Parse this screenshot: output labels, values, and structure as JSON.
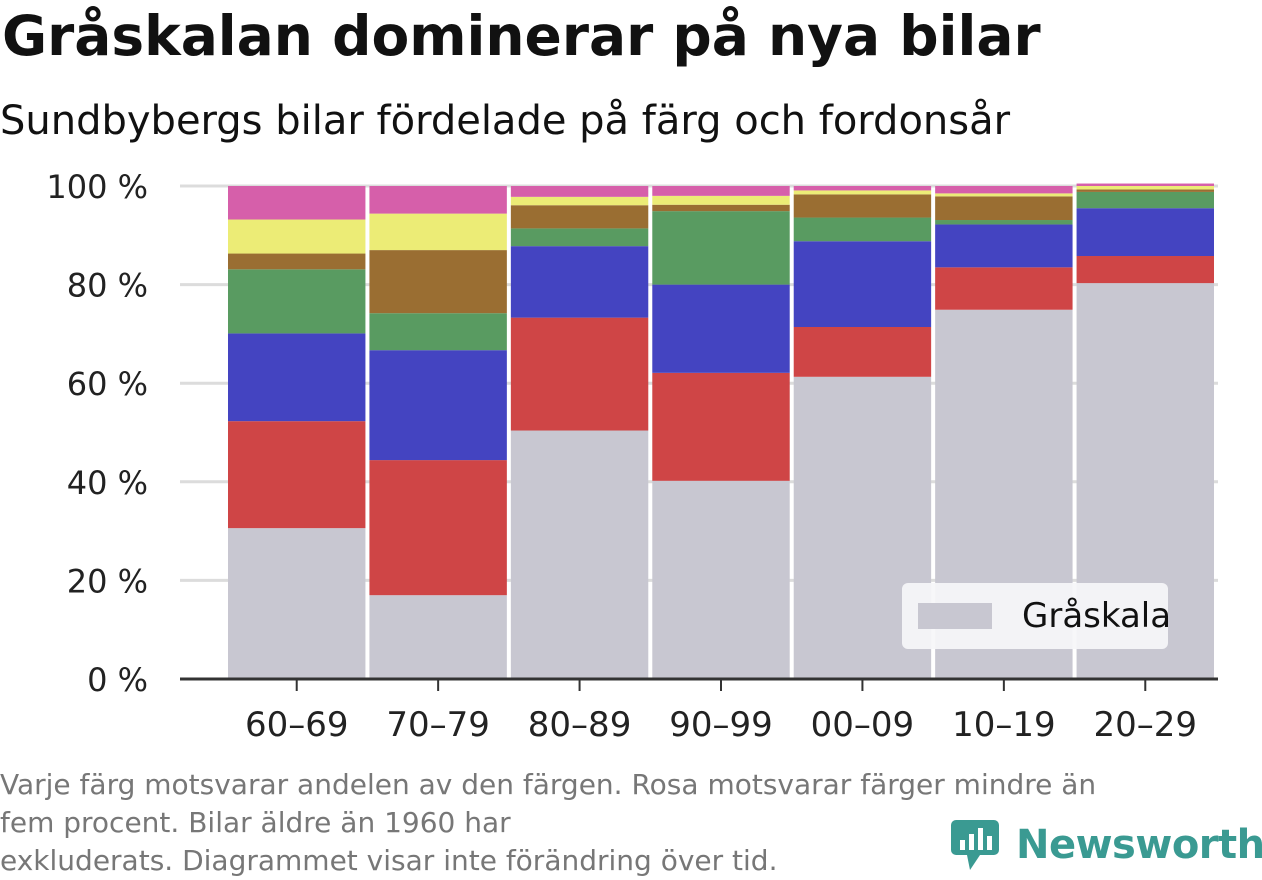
{
  "title": "Gråskalan dominerar på nya bilar",
  "subtitle": "Sundbybergs bilar fördelade på färg och fordonsår",
  "caption": {
    "line1": "Varje färg motsvarar andelen av den färgen. Rosa motsvarar färger mindre än",
    "line2": "fem procent. Bilar äldre än 1960 har",
    "line3": "exkluderats. Diagrammet visar inte förändring över tid."
  },
  "logo": {
    "text": "Newsworthy",
    "icon": "newsworthy-logo-icon",
    "color": "#3a9a92"
  },
  "chart_data": {
    "type": "bar",
    "stacked": true,
    "categories": [
      "60–69",
      "70–79",
      "80–89",
      "90–99",
      "00–09",
      "10–19",
      "20–29"
    ],
    "ylim": [
      0,
      100
    ],
    "yticks": [
      "0 %",
      "20 %",
      "40 %",
      "60 %",
      "80 %",
      "100 %"
    ],
    "grid": true,
    "legend": {
      "position": "bottom-right",
      "entries": [
        "Gråskala"
      ]
    },
    "series": [
      {
        "name": "Gråskala",
        "color": "#c8c7d1",
        "values": [
          30.6,
          17.0,
          50.4,
          40.2,
          61.3,
          74.9,
          80.3
        ]
      },
      {
        "color": "#cf4546",
        "values": [
          21.7,
          27.4,
          22.9,
          21.9,
          10.1,
          8.6,
          5.5
        ]
      },
      {
        "color": "#4444c1",
        "values": [
          17.8,
          22.3,
          14.5,
          17.9,
          17.4,
          8.7,
          9.7
        ]
      },
      {
        "color": "#599b61",
        "values": [
          13.0,
          7.5,
          3.6,
          14.9,
          4.8,
          0.9,
          3.3
        ]
      },
      {
        "color": "#9a6e32",
        "values": [
          3.2,
          12.8,
          4.7,
          1.3,
          4.7,
          4.8,
          0.5
        ]
      },
      {
        "color": "#ecec76",
        "values": [
          6.9,
          7.4,
          1.7,
          1.8,
          0.8,
          0.6,
          0.7
        ]
      },
      {
        "color": "#d65faa",
        "values": [
          6.8,
          5.6,
          2.2,
          2.0,
          0.9,
          1.5,
          0.5
        ]
      }
    ]
  }
}
